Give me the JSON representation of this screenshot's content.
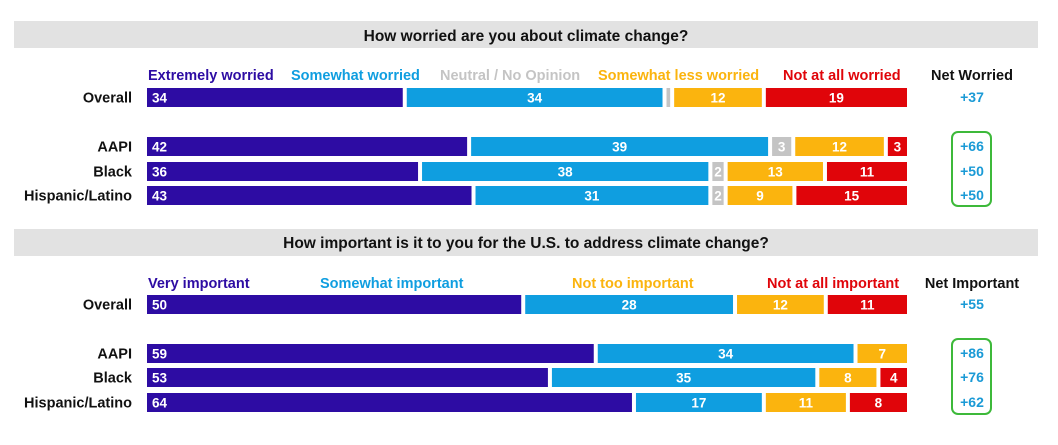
{
  "colors": {
    "extremely": "#2d0ca3",
    "somewhat": "#0f9ee0",
    "neutral": "#c4c4c4",
    "less": "#fbb40e",
    "not": "#e0050a",
    "panel": "#e2e2e2",
    "net_text": "#1a9ad6",
    "net_box": "#3db93a"
  },
  "chart_data": [
    {
      "type": "bar",
      "orientation": "horizontal",
      "stacked": true,
      "title": "How worried are you about climate change?",
      "categories": [
        "Overall",
        "AAPI",
        "Black",
        "Hispanic/Latino"
      ],
      "series": [
        {
          "name": "Extremely worried",
          "color": "#2d0ca3",
          "values": [
            34,
            42,
            36,
            43
          ]
        },
        {
          "name": "Somewhat worried",
          "color": "#0f9ee0",
          "values": [
            34,
            39,
            38,
            31
          ]
        },
        {
          "name": "Neutral / No Opinion",
          "color": "#c4c4c4",
          "values": [
            1,
            3,
            2,
            2
          ],
          "value_labels": [
            "",
            "3",
            "2",
            "2"
          ]
        },
        {
          "name": "Somewhat less worried",
          "color": "#fbb40e",
          "values": [
            12,
            12,
            13,
            9
          ]
        },
        {
          "name": "Not at all worried",
          "color": "#e0050a",
          "values": [
            19,
            3,
            11,
            15
          ]
        }
      ],
      "net_header": "Net Worried",
      "net_values": [
        "+37",
        "+66",
        "+50",
        "+50"
      ],
      "net_boxed_rows": [
        1,
        2,
        3
      ],
      "xlim": [
        0,
        100
      ]
    },
    {
      "type": "bar",
      "orientation": "horizontal",
      "stacked": true,
      "title": "How important is it to you for the U.S. to address climate change?",
      "categories": [
        "Overall",
        "AAPI",
        "Black",
        "Hispanic/Latino"
      ],
      "series": [
        {
          "name": "Very important",
          "color": "#2d0ca3",
          "values": [
            50,
            59,
            53,
            64
          ]
        },
        {
          "name": "Somewhat important",
          "color": "#0f9ee0",
          "values": [
            28,
            34,
            35,
            17
          ]
        },
        {
          "name": "Not too important",
          "color": "#fbb40e",
          "values": [
            12,
            7,
            8,
            11
          ]
        },
        {
          "name": "Not at all important",
          "color": "#e0050a",
          "values": [
            11,
            0,
            4,
            8
          ],
          "value_labels": [
            "11",
            "",
            "4",
            "8"
          ]
        }
      ],
      "net_header": "Net Important",
      "net_values": [
        "+55",
        "+86",
        "+76",
        "+62"
      ],
      "net_boxed_rows": [
        1,
        2,
        3
      ],
      "xlim": [
        0,
        100
      ]
    }
  ]
}
